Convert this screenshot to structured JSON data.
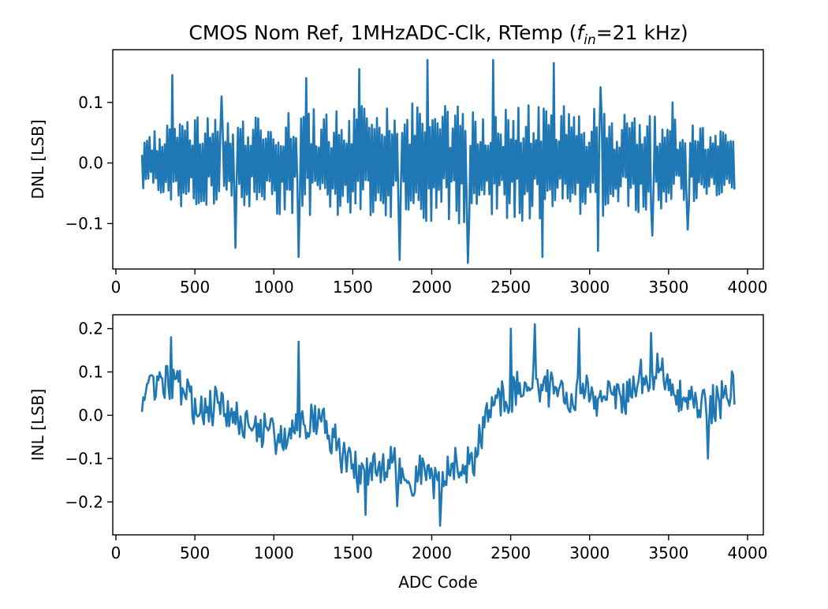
{
  "figure": {
    "title_main": "CMOS Nom Ref, 1MHzADC-Clk, RTemp (",
    "title_f": "f",
    "title_sub": "in",
    "title_tail": "=21 kHz)"
  },
  "chart_data": [
    {
      "type": "line",
      "xlabel": "",
      "ylabel": "DNL [LSB]",
      "xlim": [
        -20,
        4100
      ],
      "ylim": [
        -0.175,
        0.187
      ],
      "xticks": [
        0,
        500,
        1000,
        1500,
        2000,
        2500,
        3000,
        3500,
        4000
      ],
      "xtick_labels": [
        "0",
        "500",
        "1000",
        "1500",
        "2000",
        "2500",
        "3000",
        "3500",
        "4000"
      ],
      "yticks": [
        0.1,
        0.0,
        -0.1
      ],
      "ytick_labels": [
        "0.1",
        "0.0",
        "−0.1"
      ],
      "grid": false,
      "series": [
        {
          "color": "#1f77b4",
          "x_start": 165,
          "x_end": 3920,
          "x_step": 8,
          "envelope_upper": [
            [
              165,
              0.045
            ],
            [
              400,
              0.075
            ],
            [
              800,
              0.08
            ],
            [
              1200,
              0.09
            ],
            [
              1600,
              0.095
            ],
            [
              2000,
              0.1
            ],
            [
              2400,
              0.1
            ],
            [
              2800,
              0.095
            ],
            [
              3200,
              0.085
            ],
            [
              3600,
              0.075
            ],
            [
              3920,
              0.045
            ]
          ],
          "envelope_lower": [
            [
              165,
              -0.045
            ],
            [
              400,
              -0.075
            ],
            [
              800,
              -0.08
            ],
            [
              1200,
              -0.09
            ],
            [
              1600,
              -0.095
            ],
            [
              2000,
              -0.1
            ],
            [
              2400,
              -0.1
            ],
            [
              2800,
              -0.095
            ],
            [
              3200,
              -0.085
            ],
            [
              3600,
              -0.075
            ],
            [
              3920,
              -0.045
            ]
          ],
          "peaks": [
            [
              355,
              0.145
            ],
            [
              665,
              0.11
            ],
            [
              1205,
              0.14
            ],
            [
              1540,
              0.155
            ],
            [
              1975,
              0.17
            ],
            [
              2385,
              0.17
            ],
            [
              2775,
              0.165
            ],
            [
              3070,
              0.125
            ],
            [
              3525,
              0.1
            ],
            [
              760,
              -0.14
            ],
            [
              1160,
              -0.155
            ],
            [
              1800,
              -0.16
            ],
            [
              2230,
              -0.165
            ],
            [
              2700,
              -0.155
            ],
            [
              3050,
              -0.145
            ],
            [
              3395,
              -0.12
            ],
            [
              3620,
              -0.11
            ]
          ]
        }
      ]
    },
    {
      "type": "line",
      "xlabel": "ADC Code",
      "ylabel": "INL [LSB]",
      "xlim": [
        -20,
        4100
      ],
      "ylim": [
        -0.276,
        0.232
      ],
      "xticks": [
        0,
        500,
        1000,
        1500,
        2000,
        2500,
        3000,
        3500,
        4000
      ],
      "xtick_labels": [
        "0",
        "500",
        "1000",
        "1500",
        "2000",
        "2500",
        "3000",
        "3500",
        "4000"
      ],
      "yticks": [
        0.2,
        0.1,
        0.0,
        -0.1,
        -0.2
      ],
      "ytick_labels": [
        "0.2",
        "0.1",
        "0.0",
        "−0.1",
        "−0.2"
      ],
      "grid": false,
      "series": [
        {
          "color": "#1f77b4",
          "x_start": 165,
          "x_end": 3920,
          "x_step": 8,
          "baseline": [
            [
              165,
              0.05
            ],
            [
              250,
              0.05
            ],
            [
              350,
              0.08
            ],
            [
              450,
              0.04
            ],
            [
              550,
              0.0
            ],
            [
              650,
              0.03
            ],
            [
              750,
              -0.01
            ],
            [
              850,
              -0.02
            ],
            [
              950,
              -0.04
            ],
            [
              1050,
              -0.06
            ],
            [
              1150,
              -0.02
            ],
            [
              1250,
              0.0
            ],
            [
              1350,
              -0.04
            ],
            [
              1450,
              -0.1
            ],
            [
              1550,
              -0.14
            ],
            [
              1650,
              -0.13
            ],
            [
              1750,
              -0.1
            ],
            [
              1850,
              -0.15
            ],
            [
              1950,
              -0.13
            ],
            [
              2050,
              -0.16
            ],
            [
              2150,
              -0.11
            ],
            [
              2250,
              -0.12
            ],
            [
              2350,
              0.0
            ],
            [
              2450,
              0.04
            ],
            [
              2550,
              0.06
            ],
            [
              2650,
              0.08
            ],
            [
              2750,
              0.06
            ],
            [
              2850,
              0.03
            ],
            [
              2950,
              0.07
            ],
            [
              3050,
              0.04
            ],
            [
              3150,
              0.06
            ],
            [
              3250,
              0.04
            ],
            [
              3350,
              0.1
            ],
            [
              3450,
              0.1
            ],
            [
              3550,
              0.05
            ],
            [
              3650,
              0.03
            ],
            [
              3750,
              0.02
            ],
            [
              3850,
              0.04
            ],
            [
              3920,
              0.07
            ]
          ],
          "noise_amplitude": 0.045,
          "peaks": [
            [
              350,
              0.18
            ],
            [
              1160,
              0.17
            ],
            [
              2500,
              0.2
            ],
            [
              2650,
              0.21
            ],
            [
              2935,
              0.2
            ],
            [
              3390,
              0.19
            ],
            [
              1580,
              -0.23
            ],
            [
              1780,
              -0.21
            ],
            [
              2050,
              -0.255
            ],
            [
              3750,
              -0.1
            ]
          ]
        }
      ]
    }
  ]
}
